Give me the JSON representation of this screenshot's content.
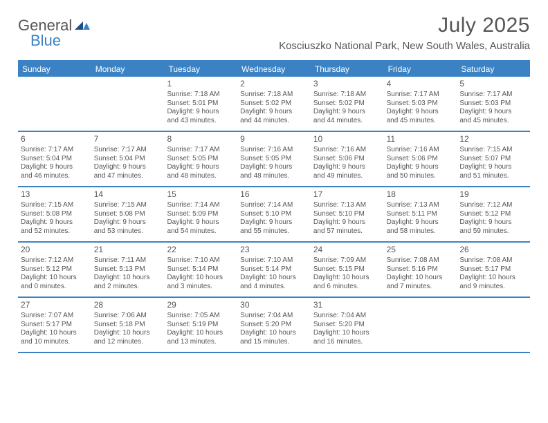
{
  "brand": {
    "part1": "General",
    "part2": "Blue"
  },
  "header": {
    "month": "July 2025",
    "location": "Kosciuszko National Park, New South Wales, Australia"
  },
  "colors": {
    "accent": "#3b82c4",
    "text": "#555555",
    "background": "#ffffff"
  },
  "dow": [
    "Sunday",
    "Monday",
    "Tuesday",
    "Wednesday",
    "Thursday",
    "Friday",
    "Saturday"
  ],
  "weeks": [
    [
      null,
      null,
      {
        "n": "1",
        "sr": "Sunrise: 7:18 AM",
        "ss": "Sunset: 5:01 PM",
        "d1": "Daylight: 9 hours",
        "d2": "and 43 minutes."
      },
      {
        "n": "2",
        "sr": "Sunrise: 7:18 AM",
        "ss": "Sunset: 5:02 PM",
        "d1": "Daylight: 9 hours",
        "d2": "and 44 minutes."
      },
      {
        "n": "3",
        "sr": "Sunrise: 7:18 AM",
        "ss": "Sunset: 5:02 PM",
        "d1": "Daylight: 9 hours",
        "d2": "and 44 minutes."
      },
      {
        "n": "4",
        "sr": "Sunrise: 7:17 AM",
        "ss": "Sunset: 5:03 PM",
        "d1": "Daylight: 9 hours",
        "d2": "and 45 minutes."
      },
      {
        "n": "5",
        "sr": "Sunrise: 7:17 AM",
        "ss": "Sunset: 5:03 PM",
        "d1": "Daylight: 9 hours",
        "d2": "and 45 minutes."
      }
    ],
    [
      {
        "n": "6",
        "sr": "Sunrise: 7:17 AM",
        "ss": "Sunset: 5:04 PM",
        "d1": "Daylight: 9 hours",
        "d2": "and 46 minutes."
      },
      {
        "n": "7",
        "sr": "Sunrise: 7:17 AM",
        "ss": "Sunset: 5:04 PM",
        "d1": "Daylight: 9 hours",
        "d2": "and 47 minutes."
      },
      {
        "n": "8",
        "sr": "Sunrise: 7:17 AM",
        "ss": "Sunset: 5:05 PM",
        "d1": "Daylight: 9 hours",
        "d2": "and 48 minutes."
      },
      {
        "n": "9",
        "sr": "Sunrise: 7:16 AM",
        "ss": "Sunset: 5:05 PM",
        "d1": "Daylight: 9 hours",
        "d2": "and 48 minutes."
      },
      {
        "n": "10",
        "sr": "Sunrise: 7:16 AM",
        "ss": "Sunset: 5:06 PM",
        "d1": "Daylight: 9 hours",
        "d2": "and 49 minutes."
      },
      {
        "n": "11",
        "sr": "Sunrise: 7:16 AM",
        "ss": "Sunset: 5:06 PM",
        "d1": "Daylight: 9 hours",
        "d2": "and 50 minutes."
      },
      {
        "n": "12",
        "sr": "Sunrise: 7:15 AM",
        "ss": "Sunset: 5:07 PM",
        "d1": "Daylight: 9 hours",
        "d2": "and 51 minutes."
      }
    ],
    [
      {
        "n": "13",
        "sr": "Sunrise: 7:15 AM",
        "ss": "Sunset: 5:08 PM",
        "d1": "Daylight: 9 hours",
        "d2": "and 52 minutes."
      },
      {
        "n": "14",
        "sr": "Sunrise: 7:15 AM",
        "ss": "Sunset: 5:08 PM",
        "d1": "Daylight: 9 hours",
        "d2": "and 53 minutes."
      },
      {
        "n": "15",
        "sr": "Sunrise: 7:14 AM",
        "ss": "Sunset: 5:09 PM",
        "d1": "Daylight: 9 hours",
        "d2": "and 54 minutes."
      },
      {
        "n": "16",
        "sr": "Sunrise: 7:14 AM",
        "ss": "Sunset: 5:10 PM",
        "d1": "Daylight: 9 hours",
        "d2": "and 55 minutes."
      },
      {
        "n": "17",
        "sr": "Sunrise: 7:13 AM",
        "ss": "Sunset: 5:10 PM",
        "d1": "Daylight: 9 hours",
        "d2": "and 57 minutes."
      },
      {
        "n": "18",
        "sr": "Sunrise: 7:13 AM",
        "ss": "Sunset: 5:11 PM",
        "d1": "Daylight: 9 hours",
        "d2": "and 58 minutes."
      },
      {
        "n": "19",
        "sr": "Sunrise: 7:12 AM",
        "ss": "Sunset: 5:12 PM",
        "d1": "Daylight: 9 hours",
        "d2": "and 59 minutes."
      }
    ],
    [
      {
        "n": "20",
        "sr": "Sunrise: 7:12 AM",
        "ss": "Sunset: 5:12 PM",
        "d1": "Daylight: 10 hours",
        "d2": "and 0 minutes."
      },
      {
        "n": "21",
        "sr": "Sunrise: 7:11 AM",
        "ss": "Sunset: 5:13 PM",
        "d1": "Daylight: 10 hours",
        "d2": "and 2 minutes."
      },
      {
        "n": "22",
        "sr": "Sunrise: 7:10 AM",
        "ss": "Sunset: 5:14 PM",
        "d1": "Daylight: 10 hours",
        "d2": "and 3 minutes."
      },
      {
        "n": "23",
        "sr": "Sunrise: 7:10 AM",
        "ss": "Sunset: 5:14 PM",
        "d1": "Daylight: 10 hours",
        "d2": "and 4 minutes."
      },
      {
        "n": "24",
        "sr": "Sunrise: 7:09 AM",
        "ss": "Sunset: 5:15 PM",
        "d1": "Daylight: 10 hours",
        "d2": "and 6 minutes."
      },
      {
        "n": "25",
        "sr": "Sunrise: 7:08 AM",
        "ss": "Sunset: 5:16 PM",
        "d1": "Daylight: 10 hours",
        "d2": "and 7 minutes."
      },
      {
        "n": "26",
        "sr": "Sunrise: 7:08 AM",
        "ss": "Sunset: 5:17 PM",
        "d1": "Daylight: 10 hours",
        "d2": "and 9 minutes."
      }
    ],
    [
      {
        "n": "27",
        "sr": "Sunrise: 7:07 AM",
        "ss": "Sunset: 5:17 PM",
        "d1": "Daylight: 10 hours",
        "d2": "and 10 minutes."
      },
      {
        "n": "28",
        "sr": "Sunrise: 7:06 AM",
        "ss": "Sunset: 5:18 PM",
        "d1": "Daylight: 10 hours",
        "d2": "and 12 minutes."
      },
      {
        "n": "29",
        "sr": "Sunrise: 7:05 AM",
        "ss": "Sunset: 5:19 PM",
        "d1": "Daylight: 10 hours",
        "d2": "and 13 minutes."
      },
      {
        "n": "30",
        "sr": "Sunrise: 7:04 AM",
        "ss": "Sunset: 5:20 PM",
        "d1": "Daylight: 10 hours",
        "d2": "and 15 minutes."
      },
      {
        "n": "31",
        "sr": "Sunrise: 7:04 AM",
        "ss": "Sunset: 5:20 PM",
        "d1": "Daylight: 10 hours",
        "d2": "and 16 minutes."
      },
      null,
      null
    ]
  ]
}
